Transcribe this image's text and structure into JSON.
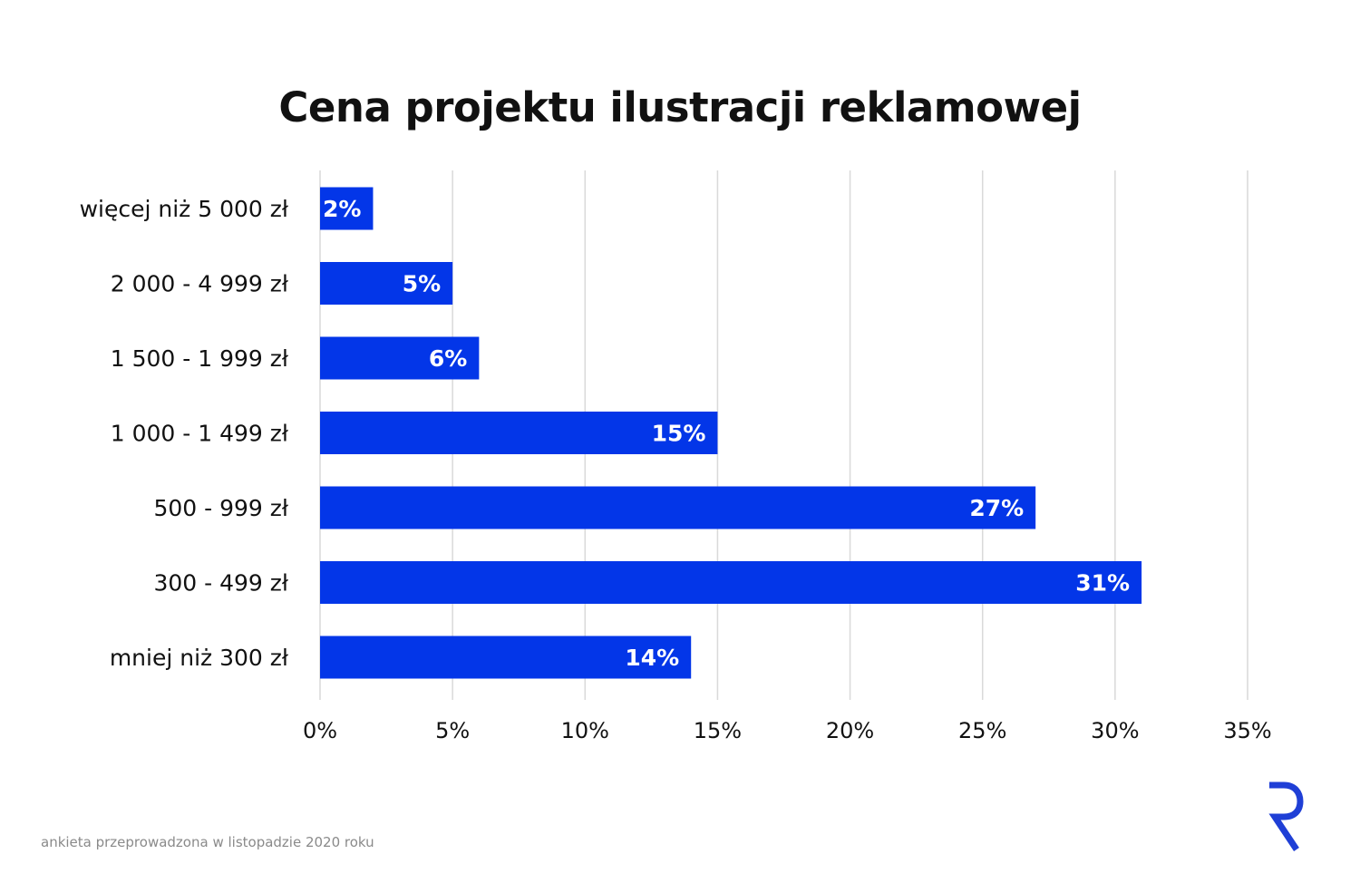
{
  "chart_data": {
    "type": "bar",
    "orientation": "horizontal",
    "title": "Cena projektu ilustracji reklamowej",
    "categories": [
      "więcej niż 5 000 zł",
      "2 000 - 4 999 zł",
      "1 500 - 1 999 zł",
      "1 000 - 1 499 zł",
      "500 - 999 zł",
      "300 - 499 zł",
      "mniej niż 300 zł"
    ],
    "values": [
      2,
      5,
      6,
      15,
      27,
      31,
      14
    ],
    "value_labels": [
      "2%",
      "5%",
      "6%",
      "15%",
      "27%",
      "31%",
      "14%"
    ],
    "xlim": [
      0,
      35
    ],
    "x_ticks": [
      0,
      5,
      10,
      15,
      20,
      25,
      30,
      35
    ],
    "x_tick_labels": [
      "0%",
      "5%",
      "10%",
      "15%",
      "20%",
      "25%",
      "30%",
      "35%"
    ],
    "xlabel": "",
    "ylabel": "",
    "grid": "vertical",
    "legend": "none",
    "bar_color": "#0336E8"
  },
  "footnote": "ankieta przeprowadzona w listopadzie 2020 roku",
  "logo": {
    "icon": "r-brand-logo-icon",
    "color": "#1F3FD6"
  }
}
